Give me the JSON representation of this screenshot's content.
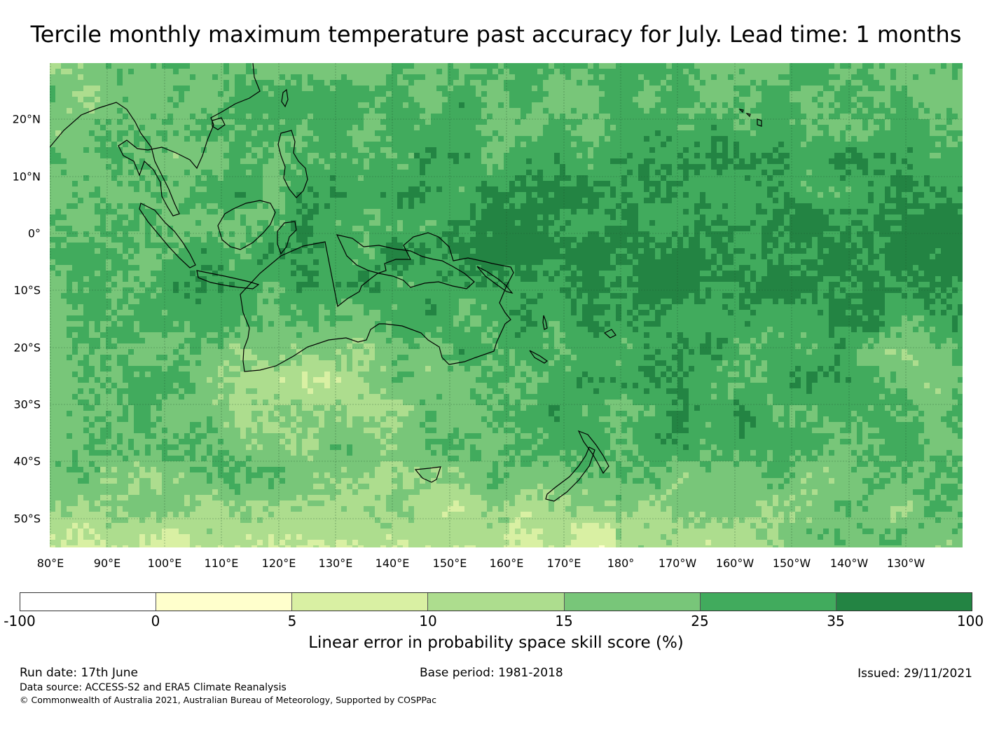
{
  "title": "Tercile monthly maximum temperature past accuracy for July. Lead time: 1 months",
  "map": {
    "type": "gridded skill score map",
    "region": "Western and Central Pacific / Australia",
    "lat_labels": [
      "20°N",
      "10°N",
      "0°",
      "10°S",
      "20°S",
      "30°S",
      "40°S",
      "50°S"
    ],
    "lon_labels": [
      "80°E",
      "90°E",
      "100°E",
      "110°E",
      "120°E",
      "130°E",
      "140°E",
      "150°E",
      "160°E",
      "170°E",
      "180°",
      "170°W",
      "160°W",
      "150°W",
      "140°W",
      "130°W"
    ],
    "gridlines": true,
    "coastlines": true
  },
  "colorbar": {
    "ticks": [
      "-100",
      "0",
      "5",
      "10",
      "15",
      "25",
      "35",
      "100"
    ],
    "colors": [
      "#ffffff",
      "#ffffcc",
      "#d9f0a3",
      "#addd8e",
      "#78c679",
      "#41ab5d",
      "#238443"
    ],
    "label": "Linear error in probability space skill score (%)"
  },
  "footer": {
    "run_date": "Run date: 17th June",
    "base_period": "Base period: 1981-2018",
    "issued": "Issued: 29/11/2021",
    "data_source": "Data source: ACCESS-S2 and ERA5 Climate Reanalysis",
    "copyright": "© Commonwealth of Australia 2021, Australian Bureau of Meteorology, Supported by COSPPac"
  }
}
